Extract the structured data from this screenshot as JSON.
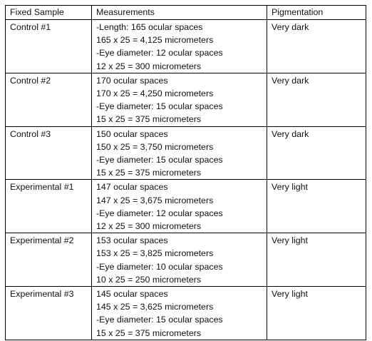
{
  "table": {
    "headers": [
      "Fixed Sample",
      "Measurements",
      "Pigmentation"
    ],
    "rows": [
      {
        "sample": "Control #1",
        "measurements": [
          "-Length: 165 ocular spaces",
          "165 x 25 =  4,125 micrometers",
          "-Eye diameter: 12 ocular spaces",
          "12 x 25 = 300 micrometers"
        ],
        "pigmentation": "Very dark"
      },
      {
        "sample": "Control #2",
        "measurements": [
          "170 ocular spaces",
          "170 x 25 = 4,250 micrometers",
          "-Eye diameter: 15 ocular spaces",
          "15 x 25 = 375 micrometers"
        ],
        "pigmentation": "Very dark"
      },
      {
        "sample": "Control #3",
        "measurements": [
          "150 ocular spaces",
          "150 x 25 =  3,750 micrometers",
          "-Eye diameter: 15 ocular spaces",
          "15 x 25 = 375 micrometers"
        ],
        "pigmentation": "Very dark"
      },
      {
        "sample": "Experimental #1",
        "measurements": [
          "147 ocular spaces",
          "147 x 25 =  3,675 micrometers",
          "-Eye diameter: 12 ocular spaces",
          "12 x 25 = 300 micrometers"
        ],
        "pigmentation": "Very light"
      },
      {
        "sample": "Experimental #2",
        "measurements": [
          "153 ocular spaces",
          "153 x 25 =  3,825 micrometers",
          "-Eye diameter: 10 ocular spaces",
          "10 x 25 = 250 micrometers"
        ],
        "pigmentation": "Very light"
      },
      {
        "sample": "Experimental #3",
        "measurements": [
          "145 ocular spaces",
          "145 x 25 =  3,625 micrometers",
          "-Eye diameter: 15 ocular spaces",
          "15 x 25 = 375 micrometers"
        ],
        "pigmentation": "Very light"
      }
    ]
  }
}
